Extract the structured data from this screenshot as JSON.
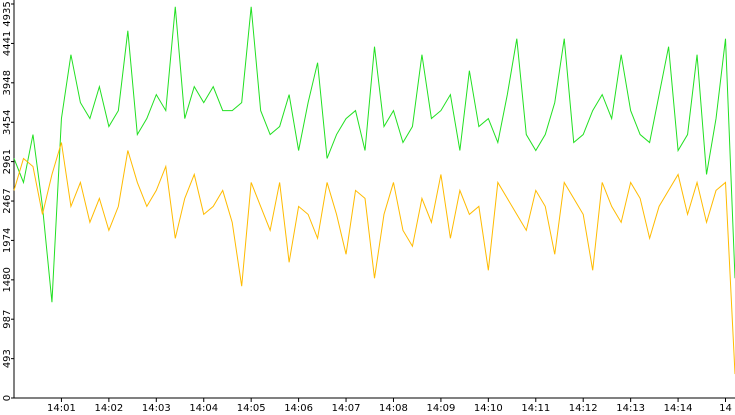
{
  "chart_data": {
    "type": "line",
    "x": [
      0,
      0.2,
      0.4,
      0.6,
      0.8,
      1,
      1.2,
      1.4,
      1.6,
      1.8,
      2,
      2.2,
      2.4,
      2.6,
      2.8,
      3,
      3.2,
      3.4,
      3.6,
      3.8,
      4,
      4.2,
      4.4,
      4.6,
      4.8,
      5,
      5.2,
      5.4,
      5.6,
      5.8,
      6,
      6.2,
      6.4,
      6.6,
      6.8,
      7,
      7.2,
      7.4,
      7.6,
      7.8,
      8,
      8.2,
      8.4,
      8.6,
      8.8,
      9,
      9.2,
      9.4,
      9.6,
      9.8,
      10,
      10.2,
      10.4,
      10.6,
      10.8,
      11,
      11.2,
      11.4,
      11.6,
      11.8,
      12,
      12.2,
      12.4,
      12.6,
      12.8,
      13,
      13.2,
      13.4,
      13.6,
      13.8,
      14,
      14.2,
      14.4,
      14.6,
      14.8,
      15,
      15.2
    ],
    "series": [
      {
        "color": "#22e022",
        "values": [
          3000,
          2700,
          3300,
          2400,
          1200,
          3500,
          4300,
          3700,
          3500,
          3900,
          3400,
          3600,
          4600,
          3300,
          3500,
          3800,
          3600,
          4900,
          3500,
          3900,
          3700,
          3900,
          3600,
          3600,
          3700,
          4900,
          3600,
          3300,
          3400,
          3800,
          3100,
          3700,
          4200,
          3000,
          3300,
          3500,
          3600,
          3100,
          4400,
          3400,
          3600,
          3200,
          3400,
          4300,
          3500,
          3600,
          3800,
          3100,
          4100,
          3400,
          3500,
          3200,
          3800,
          4500,
          3300,
          3100,
          3300,
          3700,
          4500,
          3200,
          3300,
          3600,
          3800,
          3500,
          4300,
          3600,
          3300,
          3200,
          3800,
          4400,
          3100,
          3300,
          4300,
          2800,
          3500,
          4500,
          1500
        ]
      },
      {
        "color": "#ffbb00",
        "values": [
          2600,
          3000,
          2900,
          2300,
          2800,
          3200,
          2400,
          2700,
          2200,
          2500,
          2100,
          2400,
          3100,
          2700,
          2400,
          2600,
          2900,
          2000,
          2500,
          2800,
          2300,
          2400,
          2600,
          2200,
          1400,
          2700,
          2400,
          2100,
          2700,
          1700,
          2400,
          2300,
          2000,
          2700,
          2300,
          1800,
          2600,
          2500,
          1500,
          2300,
          2700,
          2100,
          1900,
          2500,
          2200,
          2800,
          2000,
          2600,
          2300,
          2400,
          1600,
          2700,
          2500,
          2300,
          2100,
          2600,
          2400,
          1800,
          2700,
          2500,
          2300,
          1600,
          2700,
          2400,
          2200,
          2700,
          2500,
          2000,
          2400,
          2600,
          2800,
          2300,
          2700,
          2200,
          2600,
          2700,
          300
        ]
      }
    ],
    "xlim": [
      0,
      15.2
    ],
    "xticks": [
      {
        "value": 1,
        "label": "14:01"
      },
      {
        "value": 2,
        "label": "14:02"
      },
      {
        "value": 3,
        "label": "14:03"
      },
      {
        "value": 4,
        "label": "14:04"
      },
      {
        "value": 5,
        "label": "14:05"
      },
      {
        "value": 6,
        "label": "14:06"
      },
      {
        "value": 7,
        "label": "14:07"
      },
      {
        "value": 8,
        "label": "14:08"
      },
      {
        "value": 9,
        "label": "14:09"
      },
      {
        "value": 10,
        "label": "14:10"
      },
      {
        "value": 11,
        "label": "14:11"
      },
      {
        "value": 12,
        "label": "14:12"
      },
      {
        "value": 13,
        "label": "14:13"
      },
      {
        "value": 14,
        "label": "14:14"
      },
      {
        "value": 15,
        "label": "14"
      }
    ],
    "ylim": [
      0,
      4935
    ],
    "yticks": [
      0,
      493,
      987,
      1480,
      1974,
      2467,
      2961,
      3454,
      3948,
      4441,
      4935
    ]
  }
}
